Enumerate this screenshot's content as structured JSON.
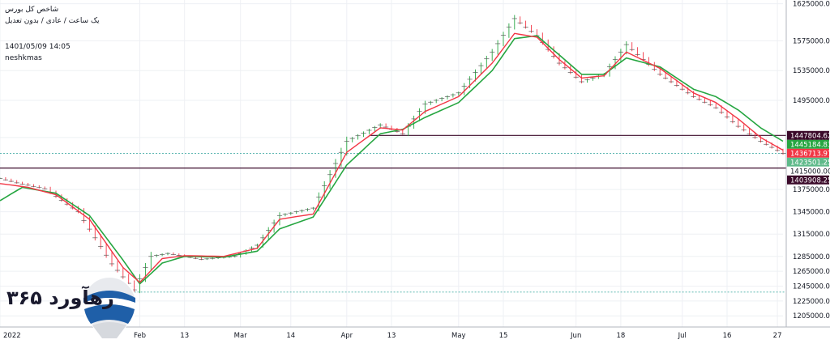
{
  "header": {
    "title": "شاخص کل بورس",
    "subtitle": "یک ساعت / عادی / بدون تعدیل",
    "datetime": "1401/05/09 14:05",
    "author": "neshkmas"
  },
  "watermark": {
    "text": "رهآورد ۳۶۵"
  },
  "colors": {
    "fast_ma": "#f23645",
    "slow_ma": "#26a641",
    "price": "#5a5a5a",
    "up_tick": "#26a641",
    "down_tick": "#f23645",
    "h_line": "#3b0a2a",
    "dotted_line": "#2aa198",
    "grid": "#eef0f4"
  },
  "chart_data": {
    "type": "line",
    "ylim": [
      1190000,
      1630000
    ],
    "y_ticks": [
      "1625000.00",
      "1575000.00",
      "1535000.00",
      "1495000.00",
      "1445000.00",
      "1375000.00",
      "1345000.00",
      "1315000.00",
      "1285000.00",
      "1265000.00",
      "1245000.00",
      "1225000.00",
      "1205000.00"
    ],
    "y_tick_values": [
      1625000,
      1575000,
      1535000,
      1495000,
      1445000,
      1375000,
      1345000,
      1315000,
      1285000,
      1265000,
      1245000,
      1225000,
      1205000
    ],
    "x_ticks": [
      "2022",
      "Feb",
      "13",
      "Mar",
      "14",
      "Apr",
      "13",
      "May",
      "15",
      "Jun",
      "18",
      "Jul",
      "16",
      "27"
    ],
    "x_tick_index": [
      0,
      25,
      33,
      43,
      52,
      62,
      70,
      82,
      90,
      103,
      111,
      122,
      130,
      139
    ],
    "n_points": 141,
    "price_key": [
      [
        0,
        1390000
      ],
      [
        3,
        1384000
      ],
      [
        8,
        1376000
      ],
      [
        14,
        1345000
      ],
      [
        20,
        1275000
      ],
      [
        24,
        1240000
      ],
      [
        27,
        1285000
      ],
      [
        30,
        1289000
      ],
      [
        36,
        1281000
      ],
      [
        42,
        1285000
      ],
      [
        46,
        1300000
      ],
      [
        50,
        1340000
      ],
      [
        56,
        1350000
      ],
      [
        62,
        1440000
      ],
      [
        68,
        1462000
      ],
      [
        72,
        1450000
      ],
      [
        76,
        1490000
      ],
      [
        82,
        1505000
      ],
      [
        88,
        1560000
      ],
      [
        92,
        1605000
      ],
      [
        96,
        1582000
      ],
      [
        100,
        1545000
      ],
      [
        104,
        1520000
      ],
      [
        108,
        1530000
      ],
      [
        112,
        1570000
      ],
      [
        118,
        1530000
      ],
      [
        124,
        1500000
      ],
      [
        128,
        1485000
      ],
      [
        132,
        1460000
      ],
      [
        136,
        1440000
      ],
      [
        140,
        1423500
      ]
    ],
    "fast_key": [
      [
        0,
        1383000
      ],
      [
        5,
        1378000
      ],
      [
        10,
        1368000
      ],
      [
        16,
        1335000
      ],
      [
        22,
        1270000
      ],
      [
        25,
        1250000
      ],
      [
        29,
        1282000
      ],
      [
        33,
        1286000
      ],
      [
        40,
        1285000
      ],
      [
        46,
        1296000
      ],
      [
        50,
        1335000
      ],
      [
        56,
        1342000
      ],
      [
        62,
        1425000
      ],
      [
        68,
        1458000
      ],
      [
        72,
        1455000
      ],
      [
        76,
        1480000
      ],
      [
        82,
        1500000
      ],
      [
        88,
        1545000
      ],
      [
        92,
        1585000
      ],
      [
        96,
        1580000
      ],
      [
        100,
        1550000
      ],
      [
        104,
        1525000
      ],
      [
        108,
        1528000
      ],
      [
        112,
        1560000
      ],
      [
        118,
        1538000
      ],
      [
        124,
        1505000
      ],
      [
        128,
        1492000
      ],
      [
        132,
        1470000
      ],
      [
        136,
        1445000
      ],
      [
        140,
        1428000
      ]
    ],
    "slow_key": [
      [
        0,
        1360000
      ],
      [
        4,
        1378000
      ],
      [
        10,
        1370000
      ],
      [
        16,
        1340000
      ],
      [
        22,
        1280000
      ],
      [
        25,
        1248000
      ],
      [
        29,
        1276000
      ],
      [
        33,
        1285000
      ],
      [
        40,
        1284000
      ],
      [
        46,
        1292000
      ],
      [
        50,
        1322000
      ],
      [
        56,
        1338000
      ],
      [
        62,
        1408000
      ],
      [
        68,
        1450000
      ],
      [
        72,
        1456000
      ],
      [
        76,
        1472000
      ],
      [
        82,
        1492000
      ],
      [
        88,
        1535000
      ],
      [
        92,
        1578000
      ],
      [
        96,
        1582000
      ],
      [
        100,
        1556000
      ],
      [
        104,
        1530000
      ],
      [
        108,
        1530000
      ],
      [
        112,
        1552000
      ],
      [
        118,
        1540000
      ],
      [
        124,
        1510000
      ],
      [
        128,
        1500000
      ],
      [
        132,
        1482000
      ],
      [
        136,
        1458000
      ],
      [
        140,
        1440000
      ]
    ],
    "price_labels": [
      {
        "value": 1447804.62,
        "text": "1447804.62",
        "bg": "#3b0a2a",
        "fg": "#ffffff"
      },
      {
        "value": 1445184.83,
        "text": "1445184.83",
        "bg": "#26a641",
        "fg": "#ffffff"
      },
      {
        "value": 1436713.97,
        "text": "1436713.97",
        "bg": "#f23645",
        "fg": "#ffffff"
      },
      {
        "value": 1423501.25,
        "text": "1423501.25",
        "bg": "#5fba8a",
        "fg": "#ffffff"
      },
      {
        "value": 1415000.0,
        "text": "1415000.00",
        "bg": "#ffffff",
        "fg": "#131722"
      },
      {
        "value": 1403908.25,
        "text": "1403908.25",
        "bg": "#3b0a2a",
        "fg": "#ffffff"
      }
    ],
    "h_lines": [
      {
        "value": 1447804.62,
        "from_index": 66,
        "style": "solid"
      },
      {
        "value": 1403908.25,
        "from_index": 0,
        "style": "solid"
      },
      {
        "value": 1423501.25,
        "from_index": 0,
        "style": "dotted"
      },
      {
        "value": 1237000.0,
        "from_index": 24,
        "style": "dotted"
      }
    ]
  }
}
